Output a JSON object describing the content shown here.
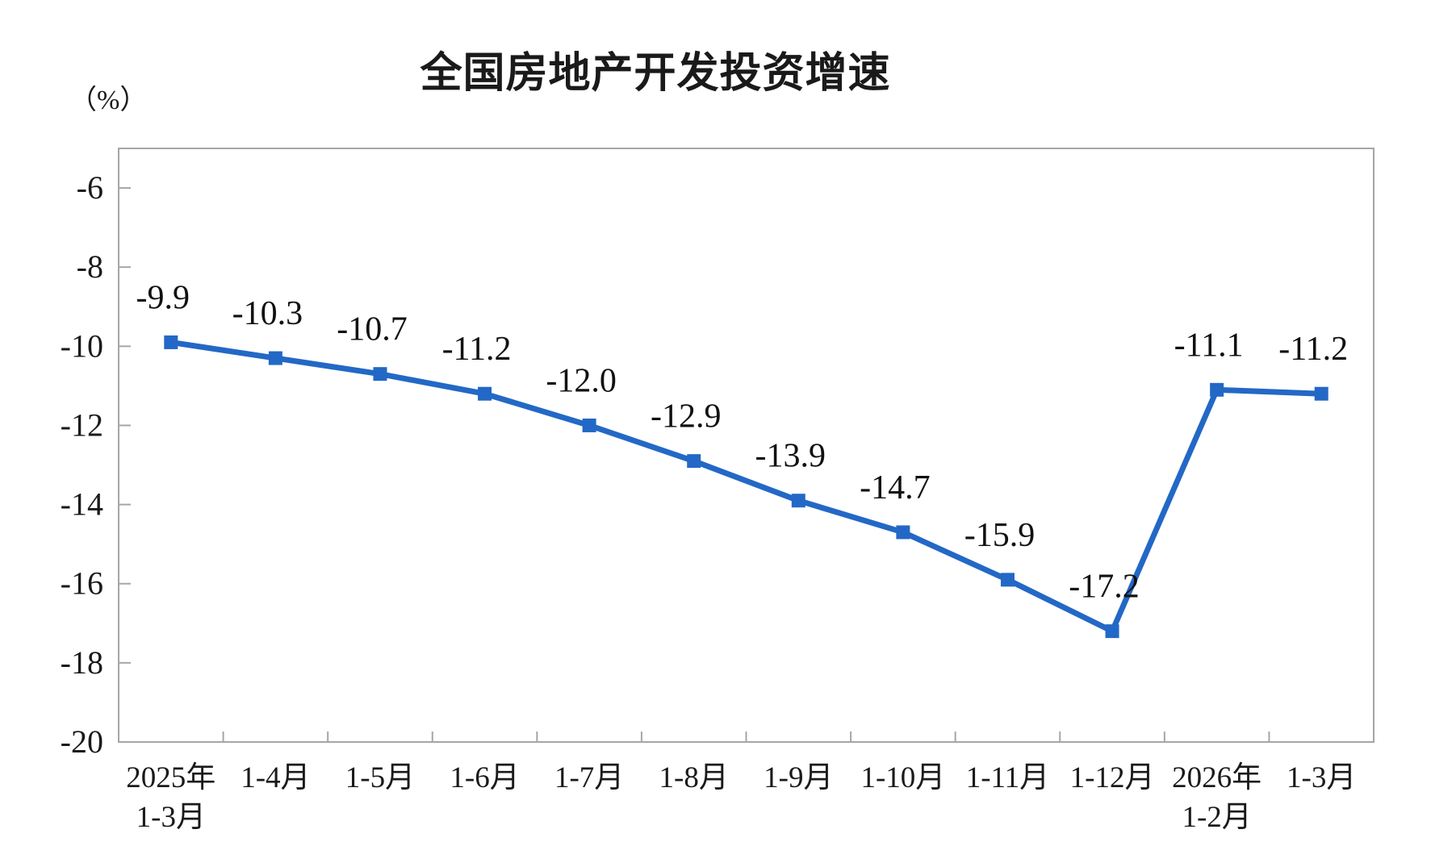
{
  "page": {
    "background_color": "#ffffff"
  },
  "chart": {
    "title": "全国房地产开发投资增速",
    "unit_label": "（%）"
  },
  "chart_data": {
    "type": "line",
    "title": "全国房地产开发投资增速",
    "ylabel": "（%）",
    "xlabel": "",
    "categories": [
      "2025年\n1-3月",
      "1-4月",
      "1-5月",
      "1-6月",
      "1-7月",
      "1-8月",
      "1-9月",
      "1-10月",
      "1-11月",
      "1-12月",
      "2026年\n1-2月",
      "1-3月"
    ],
    "series": [
      {
        "name": "全国房地产开发投资增速",
        "values": [
          -9.9,
          -10.3,
          -10.7,
          -11.2,
          -12.0,
          -12.9,
          -13.9,
          -14.7,
          -15.9,
          -17.2,
          -11.1,
          -11.2
        ],
        "data_labels": [
          "-9.9",
          "-10.3",
          "-10.7",
          "-11.2",
          "-12.0",
          "-12.9",
          "-13.9",
          "-14.7",
          "-15.9",
          "-17.2",
          "-11.1",
          "-11.2"
        ]
      }
    ],
    "ylim": [
      -20,
      -5
    ],
    "yticks": [
      -6,
      -8,
      -10,
      -12,
      -14,
      -16,
      -18,
      -20
    ],
    "grid": false,
    "legend_position": "none",
    "marker": "square",
    "line_color": "#2368c6",
    "axis_color": "#a6a6a6",
    "text_color": "#1a1a1a"
  }
}
